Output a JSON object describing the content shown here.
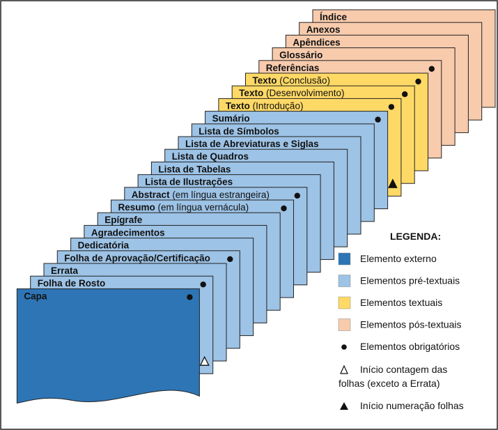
{
  "colors": {
    "externo": "#2e75b6",
    "pre": "#9dc3e6",
    "textual": "#ffd966",
    "pos": "#f8cbad",
    "border": "#222222"
  },
  "pages": [
    {
      "bold": "Índice",
      "rest": "",
      "kind": "pos",
      "dot": false
    },
    {
      "bold": "Anexos",
      "rest": "",
      "kind": "pos",
      "dot": false
    },
    {
      "bold": "Apêndices",
      "rest": "",
      "kind": "pos",
      "dot": false
    },
    {
      "bold": "Glossário",
      "rest": "",
      "kind": "pos",
      "dot": false
    },
    {
      "bold": "Referências",
      "rest": "",
      "kind": "pos",
      "dot": true
    },
    {
      "bold": "Texto",
      "rest": " (Conclusão)",
      "kind": "textual",
      "dot": true
    },
    {
      "bold": "Texto",
      "rest": " (Desenvolvimento)",
      "kind": "textual",
      "dot": true
    },
    {
      "bold": "Texto",
      "rest": " (Introdução)",
      "kind": "textual",
      "dot": true,
      "triangle": "filled"
    },
    {
      "bold": "Sumário",
      "rest": "",
      "kind": "pre",
      "dot": true
    },
    {
      "bold": "Lista de Símbolos",
      "rest": "",
      "kind": "pre",
      "dot": false
    },
    {
      "bold": "Lista de Abreviaturas e Siglas",
      "rest": "",
      "kind": "pre",
      "dot": false
    },
    {
      "bold": "Lista de Quadros",
      "rest": "",
      "kind": "pre",
      "dot": false
    },
    {
      "bold": "Lista de Tabelas",
      "rest": "",
      "kind": "pre",
      "dot": false
    },
    {
      "bold": "Lista de Ilustrações",
      "rest": "",
      "kind": "pre",
      "dot": false
    },
    {
      "bold": "Abstract",
      "rest": " (em língua estrangeira)",
      "kind": "pre",
      "dot": true
    },
    {
      "bold": "Resumo",
      "rest": " (em língua vernácula)",
      "kind": "pre",
      "dot": true
    },
    {
      "bold": "Epígrafe",
      "rest": "",
      "kind": "pre",
      "dot": false
    },
    {
      "bold": "Agradecimentos",
      "rest": "",
      "kind": "pre",
      "dot": false
    },
    {
      "bold": "Dedicatória",
      "rest": "",
      "kind": "pre",
      "dot": false
    },
    {
      "bold": "Folha de Aprovação/Certificação",
      "rest": "",
      "kind": "pre",
      "dot": true
    },
    {
      "bold": "Errata",
      "rest": "",
      "kind": "pre",
      "dot": false
    },
    {
      "bold": "Folha de Rosto",
      "rest": "",
      "kind": "pre",
      "dot": true,
      "triangle": "hollow"
    },
    {
      "bold": "Capa",
      "rest": "",
      "kind": "externo",
      "dot": true
    }
  ],
  "legend": {
    "title": "LEGENDA:",
    "items": [
      {
        "type": "swatch",
        "kind": "externo",
        "text": "Elemento externo"
      },
      {
        "type": "swatch",
        "kind": "pre",
        "text": "Elementos pré-textuais"
      },
      {
        "type": "swatch",
        "kind": "textual",
        "text": "Elementos textuais"
      },
      {
        "type": "swatch",
        "kind": "pos",
        "text": "Elementos pós-textuais"
      },
      {
        "type": "dot",
        "text": "Elementos obrigatórios"
      },
      {
        "type": "hollow-triangle",
        "lines": [
          "Início contagem das",
          "folhas (exceto a Errata)"
        ]
      },
      {
        "type": "filled-triangle",
        "text": "Início numeração folhas"
      }
    ]
  }
}
